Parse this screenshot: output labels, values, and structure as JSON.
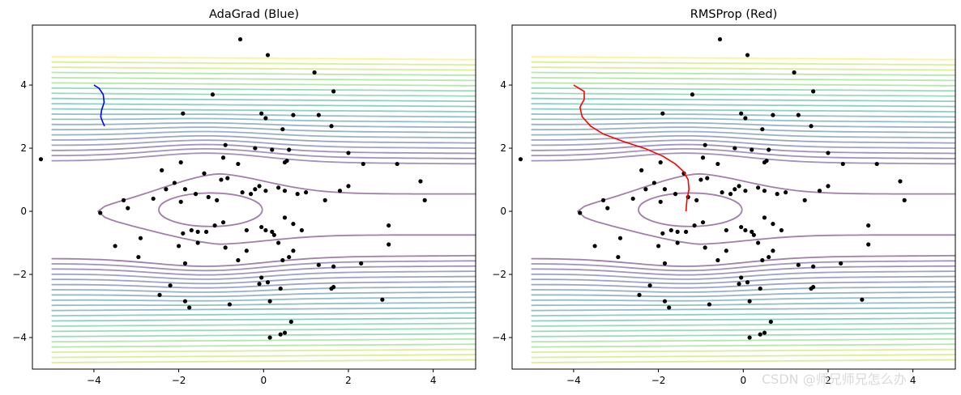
{
  "chart_data": [
    {
      "type": "line",
      "title": "AdaGrad (Blue)",
      "xlim": [
        -5.45,
        5.0
      ],
      "ylim": [
        -5.0,
        5.9
      ],
      "xticks": [
        -4,
        -2,
        0,
        2,
        4
      ],
      "yticks": [
        -4,
        -2,
        0,
        2,
        4
      ],
      "grid": false,
      "series": [
        {
          "color": "#0000ff",
          "x": [
            -4.0,
            -3.88,
            -3.78,
            -3.76,
            -3.82,
            -3.84,
            -3.8,
            -3.75
          ],
          "y": [
            4.0,
            3.9,
            3.7,
            3.45,
            3.2,
            3.0,
            2.85,
            2.7
          ]
        }
      ]
    },
    {
      "type": "line",
      "title": "RMSProp (Red)",
      "xlim": [
        -5.45,
        5.0
      ],
      "ylim": [
        -5.0,
        5.9
      ],
      "xticks": [
        -4,
        -2,
        0,
        2,
        4
      ],
      "yticks": [
        -4,
        -2,
        0,
        2,
        4
      ],
      "grid": false,
      "series": [
        {
          "color": "#ff0000",
          "x": [
            -4.0,
            -3.75,
            -3.75,
            -3.85,
            -3.8,
            -3.6,
            -3.3,
            -2.8,
            -2.3,
            -1.9,
            -1.6,
            -1.4,
            -1.3,
            -1.28,
            -1.33,
            -1.35
          ],
          "y": [
            4.0,
            3.8,
            3.55,
            3.3,
            3.0,
            2.7,
            2.45,
            2.2,
            1.98,
            1.75,
            1.5,
            1.25,
            1.0,
            0.7,
            0.35,
            0.0
          ]
        }
      ]
    }
  ],
  "scatter_points": [
    [
      -0.55,
      5.45
    ],
    [
      0.1,
      4.95
    ],
    [
      1.2,
      4.4
    ],
    [
      -1.2,
      3.7
    ],
    [
      1.65,
      3.8
    ],
    [
      -1.9,
      3.1
    ],
    [
      -0.05,
      3.1
    ],
    [
      0.05,
      2.95
    ],
    [
      0.7,
      3.05
    ],
    [
      1.3,
      3.05
    ],
    [
      0.45,
      2.6
    ],
    [
      1.6,
      2.7
    ],
    [
      -0.9,
      2.1
    ],
    [
      -0.2,
      2.0
    ],
    [
      0.2,
      1.95
    ],
    [
      0.6,
      1.95
    ],
    [
      -0.95,
      1.7
    ],
    [
      -0.6,
      1.5
    ],
    [
      2.0,
      1.85
    ],
    [
      0.55,
      1.6
    ],
    [
      0.5,
      1.55
    ],
    [
      -5.25,
      1.65
    ],
    [
      3.15,
      1.5
    ],
    [
      -1.95,
      1.55
    ],
    [
      -2.4,
      1.3
    ],
    [
      -2.1,
      0.9
    ],
    [
      -1.4,
      1.2
    ],
    [
      -1.0,
      1.0
    ],
    [
      -0.85,
      1.05
    ],
    [
      -0.5,
      0.6
    ],
    [
      -0.2,
      0.7
    ],
    [
      -0.1,
      0.8
    ],
    [
      0.05,
      0.65
    ],
    [
      0.35,
      0.75
    ],
    [
      0.5,
      0.65
    ],
    [
      0.8,
      0.55
    ],
    [
      1.0,
      0.6
    ],
    [
      -2.3,
      0.7
    ],
    [
      -1.85,
      0.7
    ],
    [
      -1.6,
      0.55
    ],
    [
      -2.6,
      0.4
    ],
    [
      -3.3,
      0.35
    ],
    [
      -3.2,
      0.1
    ],
    [
      -1.95,
      0.3
    ],
    [
      -1.3,
      0.45
    ],
    [
      -1.1,
      0.35
    ],
    [
      -0.3,
      0.55
    ],
    [
      2.0,
      0.8
    ],
    [
      1.8,
      0.65
    ],
    [
      1.45,
      0.35
    ],
    [
      3.7,
      0.95
    ],
    [
      3.8,
      0.35
    ],
    [
      2.35,
      1.5
    ],
    [
      -3.85,
      -0.05
    ],
    [
      -3.5,
      -1.1
    ],
    [
      -2.9,
      -0.85
    ],
    [
      -1.7,
      -0.6
    ],
    [
      -1.55,
      -0.65
    ],
    [
      -1.35,
      -0.65
    ],
    [
      -1.15,
      -0.45
    ],
    [
      -0.95,
      -0.35
    ],
    [
      -0.4,
      -0.6
    ],
    [
      -0.05,
      -0.5
    ],
    [
      0.05,
      -0.6
    ],
    [
      0.2,
      -0.65
    ],
    [
      0.25,
      -0.75
    ],
    [
      0.35,
      -1.0
    ],
    [
      0.5,
      -0.2
    ],
    [
      0.7,
      -0.4
    ],
    [
      0.9,
      -0.6
    ],
    [
      -2.0,
      -1.1
    ],
    [
      -1.9,
      -0.7
    ],
    [
      -1.55,
      -1.0
    ],
    [
      -0.9,
      -1.15
    ],
    [
      -0.6,
      -1.55
    ],
    [
      -0.4,
      -1.25
    ],
    [
      0.45,
      -1.55
    ],
    [
      0.6,
      -1.45
    ],
    [
      0.7,
      -1.25
    ],
    [
      1.3,
      -1.7
    ],
    [
      1.65,
      -1.75
    ],
    [
      2.3,
      -1.65
    ],
    [
      2.95,
      -0.45
    ],
    [
      2.95,
      -1.05
    ],
    [
      -2.95,
      -1.45
    ],
    [
      -1.85,
      -1.65
    ],
    [
      -0.05,
      -2.1
    ],
    [
      -0.1,
      -2.3
    ],
    [
      0.1,
      -2.25
    ],
    [
      0.4,
      -2.45
    ],
    [
      1.6,
      -2.45
    ],
    [
      1.65,
      -2.4
    ],
    [
      -2.2,
      -2.35
    ],
    [
      -2.45,
      -2.65
    ],
    [
      -1.85,
      -2.85
    ],
    [
      -1.75,
      -3.05
    ],
    [
      -0.8,
      -2.95
    ],
    [
      0.15,
      -2.85
    ],
    [
      2.8,
      -2.8
    ],
    [
      0.65,
      -3.5
    ],
    [
      0.5,
      -3.85
    ],
    [
      0.4,
      -3.9
    ],
    [
      0.15,
      -4.0
    ]
  ],
  "watermark": "CSDN @师兄师兄怎么办"
}
